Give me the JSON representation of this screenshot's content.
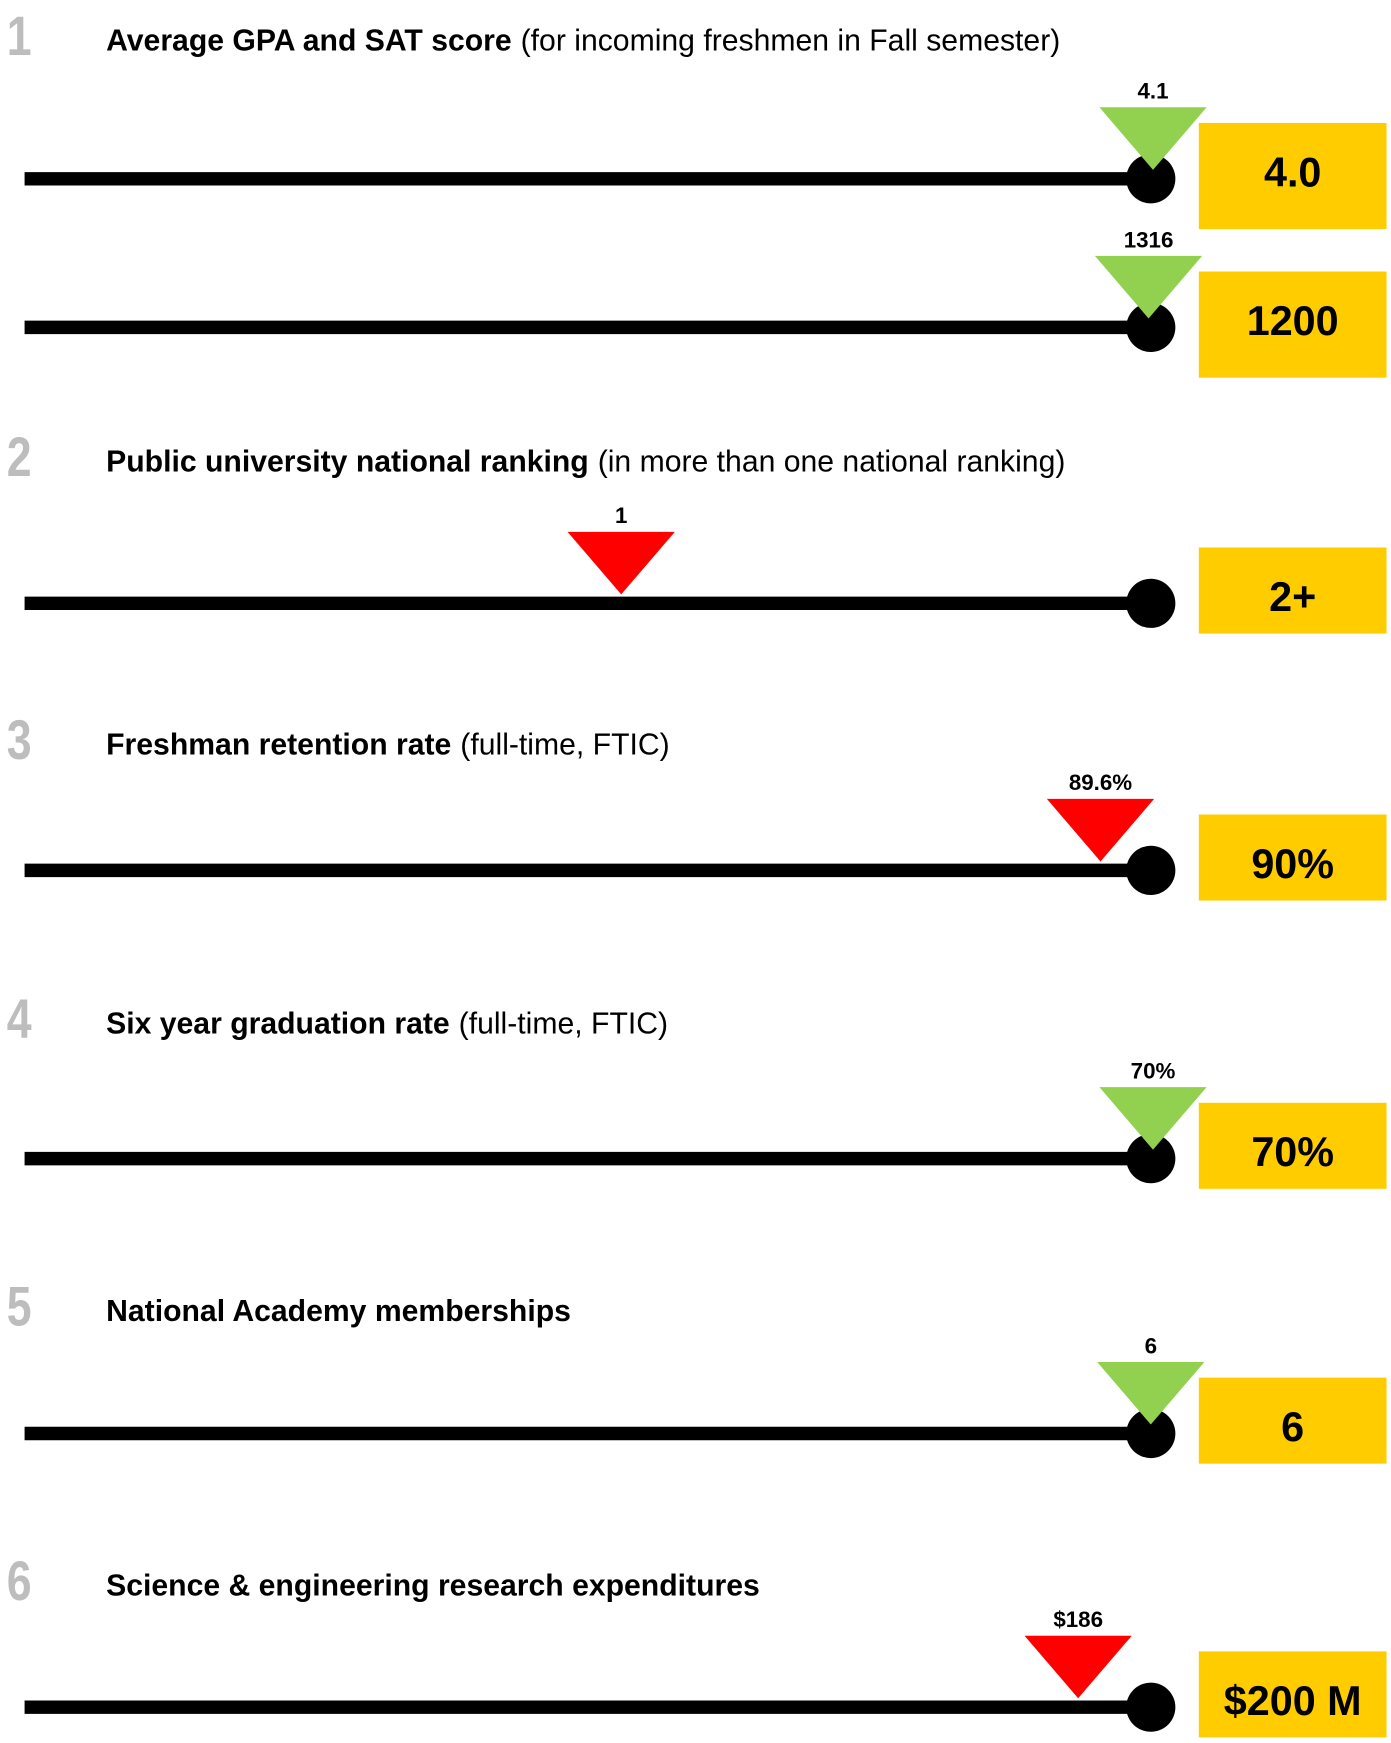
{
  "sections": [
    {
      "number": "1",
      "title_bold": "Average GPA and SAT score",
      "title_rest": "(for incoming freshmen in Fall semester)",
      "rows": [
        {
          "marker_label": "4.1",
          "marker_color": "#92d050",
          "goal": "4.0"
        },
        {
          "marker_label": "1316",
          "marker_color": "#92d050",
          "goal": "1200"
        }
      ]
    },
    {
      "number": "2",
      "title_bold": "Public university national ranking",
      "title_rest": "(in more than one national ranking)",
      "rows": [
        {
          "marker_label": "1",
          "marker_color": "#ff0000",
          "goal": "2+"
        }
      ]
    },
    {
      "number": "3",
      "title_bold": "Freshman retention rate",
      "title_rest": "(full-time, FTIC)",
      "rows": [
        {
          "marker_label": "89.6%",
          "marker_color": "#ff0000",
          "goal": "90%"
        }
      ]
    },
    {
      "number": "4",
      "title_bold": "Six year graduation rate",
      "title_rest": "(full-time, FTIC)",
      "rows": [
        {
          "marker_label": "70%",
          "marker_color": "#92d050",
          "goal": "70%"
        }
      ]
    },
    {
      "number": "5",
      "title_bold": "National Academy memberships",
      "rows": [
        {
          "marker_label": "6",
          "marker_color": "#92d050",
          "goal": "6"
        }
      ]
    },
    {
      "number": "6",
      "title_bold": "Science & engineering research expenditures",
      "rows": [
        {
          "marker_label": "$186",
          "marker_color": "#ff0000",
          "goal": "$200 M"
        }
      ]
    }
  ]
}
